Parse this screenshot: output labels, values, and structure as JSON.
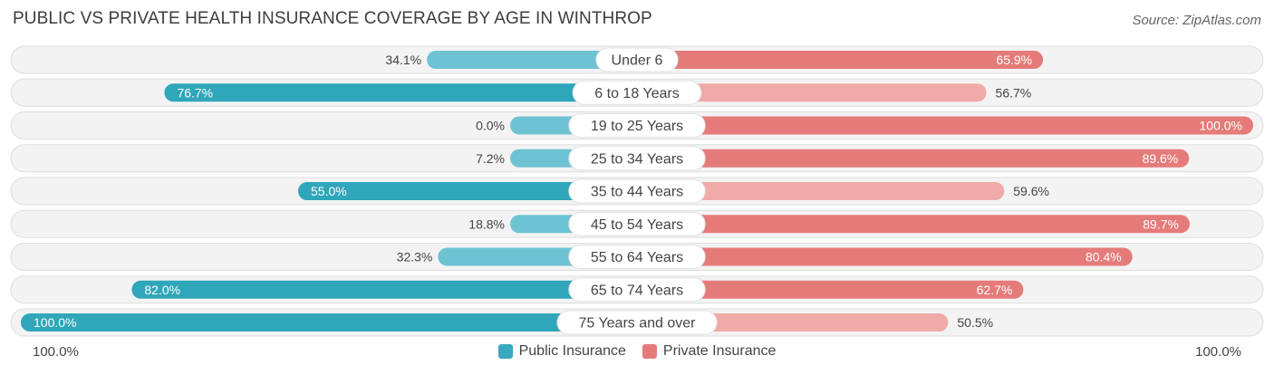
{
  "title": "PUBLIC VS PRIVATE HEALTH INSURANCE COVERAGE BY AGE IN WINTHROP",
  "source": "Source: ZipAtlas.com",
  "axis": {
    "left_label": "100.0%",
    "right_label": "100.0%"
  },
  "legend": [
    {
      "label": "Public Insurance",
      "color": "#3aa9be"
    },
    {
      "label": "Private Insurance",
      "color": "#e47b7b"
    }
  ],
  "chart_data": {
    "type": "bar",
    "orientation": "horizontal-diverging",
    "categories": [
      "Under 6",
      "6 to 18 Years",
      "19 to 25 Years",
      "25 to 34 Years",
      "35 to 44 Years",
      "45 to 54 Years",
      "55 to 64 Years",
      "65 to 74 Years",
      "75 Years and over"
    ],
    "series": [
      {
        "name": "Public Insurance",
        "values": [
          34.1,
          76.7,
          0.0,
          7.2,
          55.0,
          18.8,
          32.3,
          82.0,
          100.0
        ],
        "labels": [
          "34.1%",
          "76.7%",
          "0.0%",
          "7.2%",
          "55.0%",
          "18.8%",
          "32.3%",
          "82.0%",
          "100.0%"
        ]
      },
      {
        "name": "Private Insurance",
        "values": [
          65.9,
          56.7,
          100.0,
          89.6,
          59.6,
          89.7,
          80.4,
          62.7,
          50.5
        ],
        "labels": [
          "65.9%",
          "56.7%",
          "100.0%",
          "89.6%",
          "59.6%",
          "89.7%",
          "80.4%",
          "62.7%",
          "50.5%"
        ]
      }
    ],
    "xlim": [
      0,
      100
    ],
    "legend_position": "bottom"
  }
}
